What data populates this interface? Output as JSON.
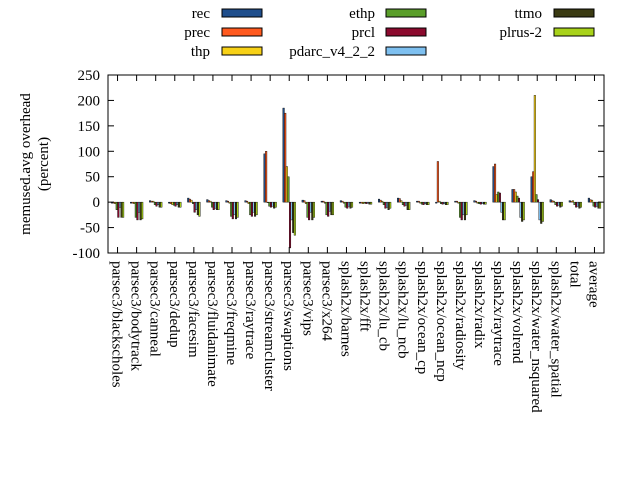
{
  "chart_data": {
    "type": "bar",
    "ylabel": "memused.avg overhead\n(percent)",
    "ylim": [
      -100,
      250
    ],
    "yticks": [
      -100,
      -50,
      0,
      50,
      100,
      150,
      200,
      250
    ],
    "grid": false,
    "legend_position": "top",
    "categories": [
      "parsec3/blackscholes",
      "parsec3/bodytrack",
      "parsec3/canneal",
      "parsec3/dedup",
      "parsec3/facesim",
      "parsec3/fluidanimate",
      "parsec3/freqmine",
      "parsec3/raytrace",
      "parsec3/streamcluster",
      "parsec3/swaptions",
      "parsec3/vips",
      "parsec3/x264",
      "splash2x/barnes",
      "splash2x/fft",
      "splash2x/lu_cb",
      "splash2x/lu_ncb",
      "splash2x/ocean_cp",
      "splash2x/ocean_ncp",
      "splash2x/radiosity",
      "splash2x/radix",
      "splash2x/raytrace",
      "splash2x/volrend",
      "splash2x/water_nsquared",
      "splash2x/water_spatial",
      "total",
      "average"
    ],
    "series": [
      {
        "name": "rec",
        "color": "#1f4e8c",
        "values": [
          -2,
          -2,
          3,
          -2,
          8,
          5,
          3,
          3,
          95,
          185,
          4,
          2,
          3,
          -2,
          6,
          8,
          2,
          -2,
          2,
          3,
          70,
          25,
          50,
          5,
          3,
          8
        ]
      },
      {
        "name": "prec",
        "color": "#ff5a1f",
        "values": [
          -2,
          -2,
          2,
          -3,
          6,
          3,
          2,
          2,
          100,
          175,
          3,
          2,
          2,
          -2,
          4,
          7,
          2,
          80,
          2,
          2,
          75,
          25,
          60,
          3,
          2,
          5
        ]
      },
      {
        "name": "thp",
        "color": "#f7d117",
        "values": [
          -3,
          -3,
          2,
          -5,
          4,
          2,
          -2,
          -3,
          0,
          70,
          -3,
          -2,
          -2,
          -3,
          2,
          3,
          -2,
          2,
          -2,
          -2,
          15,
          20,
          210,
          2,
          3,
          4
        ]
      },
      {
        "name": "ethp",
        "color": "#5a9e2a",
        "values": [
          -15,
          -30,
          -5,
          -6,
          -3,
          -10,
          -28,
          -25,
          -8,
          50,
          -30,
          -25,
          -10,
          -2,
          -5,
          -5,
          -4,
          -3,
          -30,
          -3,
          20,
          12,
          15,
          -5,
          -5,
          -8
        ]
      },
      {
        "name": "prcl",
        "color": "#8b0a2e",
        "values": [
          -30,
          -35,
          -8,
          -8,
          -20,
          -15,
          -33,
          -28,
          -10,
          -90,
          -35,
          -28,
          -12,
          -3,
          -12,
          -8,
          -5,
          -4,
          -35,
          -4,
          18,
          8,
          5,
          -8,
          -10,
          -10
        ]
      },
      {
        "name": "pdarc_v4_2_2",
        "color": "#7ec0f0",
        "values": [
          -10,
          -20,
          -5,
          -5,
          -15,
          -12,
          -25,
          -20,
          -8,
          -35,
          -20,
          -18,
          -8,
          -2,
          -10,
          -6,
          -3,
          -3,
          -25,
          -3,
          -20,
          -30,
          -35,
          -6,
          -8,
          -8
        ]
      },
      {
        "name": "ttmo",
        "color": "#3a3a12",
        "values": [
          -30,
          -35,
          -10,
          -10,
          -25,
          -15,
          -33,
          -28,
          -12,
          -60,
          -35,
          -25,
          -12,
          -4,
          -15,
          -15,
          -5,
          -5,
          -35,
          -4,
          -35,
          -38,
          -42,
          -10,
          -12,
          -12
        ]
      },
      {
        "name": "plrus-2",
        "color": "#a8d21a",
        "values": [
          -30,
          -33,
          -10,
          -10,
          -28,
          -15,
          -30,
          -25,
          -10,
          -65,
          -30,
          -25,
          -10,
          -4,
          -12,
          -15,
          -5,
          -5,
          -25,
          -4,
          -35,
          -35,
          -38,
          -8,
          -10,
          -12
        ]
      }
    ]
  }
}
